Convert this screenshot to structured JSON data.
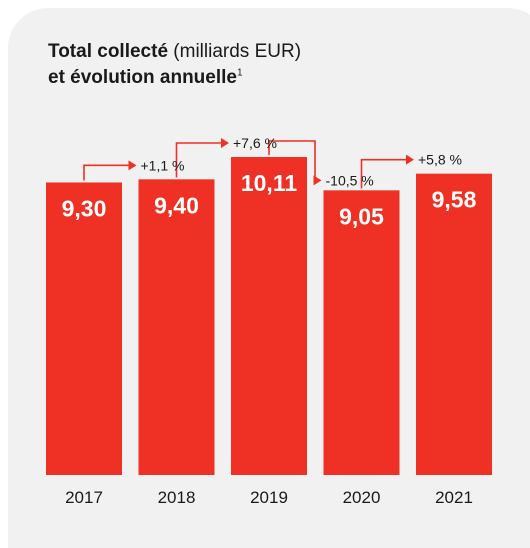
{
  "chart_data": {
    "type": "bar",
    "title_bold": "Total collecté",
    "title_rest": " (milliards EUR)",
    "subtitle_bold": "et évolution annuelle",
    "subtitle_footnote": "1",
    "categories": [
      "2017",
      "2018",
      "2019",
      "2020",
      "2021"
    ],
    "values": [
      9.3,
      9.4,
      10.11,
      9.05,
      9.58
    ],
    "value_labels": [
      "9,30",
      "9,40",
      "10,11",
      "9,05",
      "9,58"
    ],
    "changes": [
      "+1,1 %",
      "+7,6 %",
      "-10,5 %",
      "+5,8 %"
    ],
    "ylim": [
      0,
      10.11
    ],
    "grid": false,
    "bar_color": "#ee3124",
    "text_color": "#1a1a1a"
  }
}
